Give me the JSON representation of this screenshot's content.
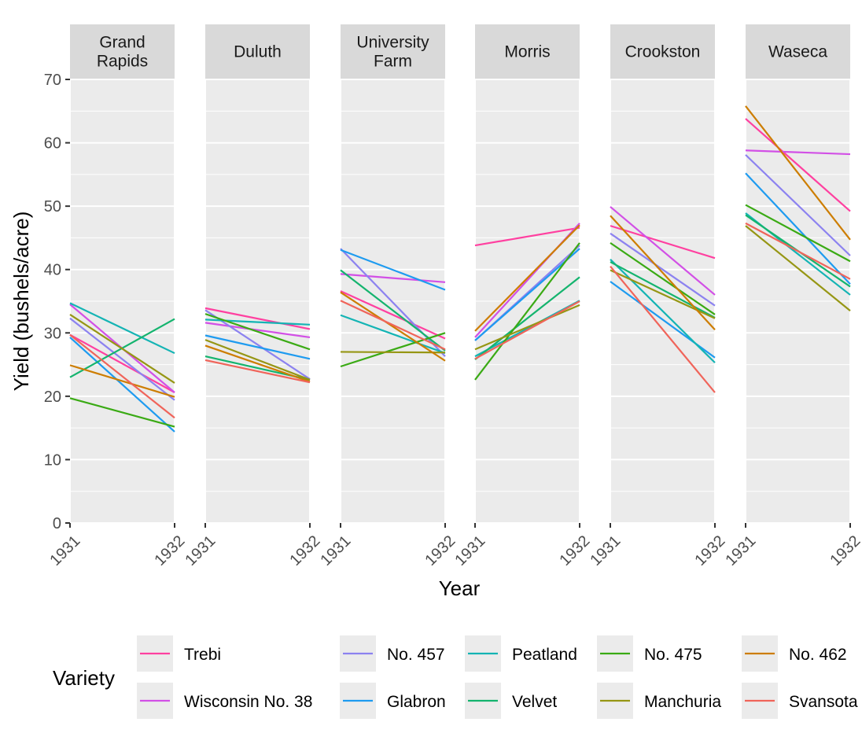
{
  "chart_data": {
    "type": "line",
    "xlabel": "Year",
    "ylabel": "Yield (bushels/acre)",
    "ylim": [
      0,
      70
    ],
    "yticks": [
      0,
      10,
      20,
      30,
      40,
      50,
      60,
      70
    ],
    "x": [
      "1931",
      "1932"
    ],
    "grid": true,
    "legend": {
      "title": "Variety",
      "position": "bottom"
    },
    "panels": [
      {
        "site": "Grand\nRapids",
        "lines": [
          {
            "variety": "Trebi",
            "values": [
              29.7,
              20.6
            ]
          },
          {
            "variety": "Wisconsin No. 38",
            "values": [
              34.5,
              20.6
            ]
          },
          {
            "variety": "No. 457",
            "values": [
              32.3,
              19.4
            ]
          },
          {
            "variety": "Glabron",
            "values": [
              29.3,
              14.4
            ]
          },
          {
            "variety": "Peatland",
            "values": [
              34.7,
              26.8
            ]
          },
          {
            "variety": "Velvet",
            "values": [
              23.0,
              32.2
            ]
          },
          {
            "variety": "No. 475",
            "values": [
              19.7,
              15.2
            ]
          },
          {
            "variety": "Manchuria",
            "values": [
              32.9,
              22.1
            ]
          },
          {
            "variety": "No. 462",
            "values": [
              24.9,
              19.9
            ]
          },
          {
            "variety": "Svansota",
            "values": [
              29.7,
              16.6
            ]
          }
        ]
      },
      {
        "site": "Duluth",
        "lines": [
          {
            "variety": "Trebi",
            "values": [
              33.9,
              30.6
            ]
          },
          {
            "variety": "Wisconsin No. 38",
            "values": [
              31.6,
              29.3
            ]
          },
          {
            "variety": "No. 457",
            "values": [
              33.6,
              22.7
            ]
          },
          {
            "variety": "Glabron",
            "values": [
              29.6,
              25.9
            ]
          },
          {
            "variety": "Peatland",
            "values": [
              32.1,
              31.3
            ]
          },
          {
            "variety": "Velvet",
            "values": [
              26.3,
              22.6
            ]
          },
          {
            "variety": "No. 475",
            "values": [
              33.0,
              27.4
            ]
          },
          {
            "variety": "Manchuria",
            "values": [
              28.9,
              22.6
            ]
          },
          {
            "variety": "No. 462",
            "values": [
              28.0,
              22.3
            ]
          },
          {
            "variety": "Svansota",
            "values": [
              25.7,
              22.2
            ]
          }
        ]
      },
      {
        "site": "University\nFarm",
        "lines": [
          {
            "variety": "Trebi",
            "values": [
              36.6,
              29.1
            ]
          },
          {
            "variety": "Wisconsin No. 38",
            "values": [
              39.3,
              38.0
            ]
          },
          {
            "variety": "No. 457",
            "values": [
              43.3,
              26.3
            ]
          },
          {
            "variety": "Glabron",
            "values": [
              43.1,
              36.8
            ]
          },
          {
            "variety": "Peatland",
            "values": [
              32.8,
              26.8
            ]
          },
          {
            "variety": "Velvet",
            "values": [
              39.9,
              27.2
            ]
          },
          {
            "variety": "No. 475",
            "values": [
              24.7,
              30.0
            ]
          },
          {
            "variety": "Manchuria",
            "values": [
              27.0,
              26.9
            ]
          },
          {
            "variety": "No. 462",
            "values": [
              36.4,
              25.6
            ]
          },
          {
            "variety": "Svansota",
            "values": [
              35.1,
              27.4
            ]
          }
        ]
      },
      {
        "site": "Morris",
        "lines": [
          {
            "variety": "Trebi",
            "values": [
              43.8,
              46.6
            ]
          },
          {
            "variety": "Wisconsin No. 38",
            "values": [
              29.3,
              47.3
            ]
          },
          {
            "variety": "No. 457",
            "values": [
              28.8,
              43.8
            ]
          },
          {
            "variety": "Glabron",
            "values": [
              28.8,
              43.3
            ]
          },
          {
            "variety": "Peatland",
            "values": [
              26.3,
              35.1
            ]
          },
          {
            "variety": "Velvet",
            "values": [
              25.8,
              38.8
            ]
          },
          {
            "variety": "No. 475",
            "values": [
              22.6,
              44.2
            ]
          },
          {
            "variety": "Manchuria",
            "values": [
              27.4,
              34.4
            ]
          },
          {
            "variety": "No. 462",
            "values": [
              30.3,
              47.0
            ]
          },
          {
            "variety": "Svansota",
            "values": [
              25.9,
              35.0
            ]
          }
        ]
      },
      {
        "site": "Crookston",
        "lines": [
          {
            "variety": "Trebi",
            "values": [
              46.9,
              41.8
            ]
          },
          {
            "variety": "Wisconsin No. 38",
            "values": [
              49.9,
              36.0
            ]
          },
          {
            "variety": "No. 457",
            "values": [
              45.7,
              34.3
            ]
          },
          {
            "variety": "Glabron",
            "values": [
              38.1,
              26.1
            ]
          },
          {
            "variety": "Peatland",
            "values": [
              41.6,
              25.3
            ]
          },
          {
            "variety": "Velvet",
            "values": [
              41.2,
              32.4
            ]
          },
          {
            "variety": "No. 475",
            "values": [
              44.2,
              32.9
            ]
          },
          {
            "variety": "Manchuria",
            "values": [
              39.9,
              32.3
            ]
          },
          {
            "variety": "No. 462",
            "values": [
              48.5,
              30.5
            ]
          },
          {
            "variety": "Svansota",
            "values": [
              40.5,
              20.6
            ]
          }
        ]
      },
      {
        "site": "Waseca",
        "lines": [
          {
            "variety": "Trebi",
            "values": [
              63.8,
              49.2
            ]
          },
          {
            "variety": "Wisconsin No. 38",
            "values": [
              58.8,
              58.2
            ]
          },
          {
            "variety": "No. 457",
            "values": [
              58.1,
              42.2
            ]
          },
          {
            "variety": "Glabron",
            "values": [
              55.2,
              37.7
            ]
          },
          {
            "variety": "Peatland",
            "values": [
              48.9,
              36.0
            ]
          },
          {
            "variety": "Velvet",
            "values": [
              48.6,
              37.3
            ]
          },
          {
            "variety": "No. 475",
            "values": [
              50.2,
              41.3
            ]
          },
          {
            "variety": "Manchuria",
            "values": [
              46.9,
              33.5
            ]
          },
          {
            "variety": "No. 462",
            "values": [
              65.8,
              44.7
            ]
          },
          {
            "variety": "Svansota",
            "values": [
              47.3,
              38.5
            ]
          }
        ]
      }
    ],
    "varieties": [
      {
        "name": "Trebi",
        "color": "#ff40a0"
      },
      {
        "name": "Wisconsin No. 38",
        "color": "#d250e6"
      },
      {
        "name": "No. 457",
        "color": "#8c82f0"
      },
      {
        "name": "Glabron",
        "color": "#1e9bf0"
      },
      {
        "name": "Peatland",
        "color": "#14b4b4"
      },
      {
        "name": "Velvet",
        "color": "#14b46e"
      },
      {
        "name": "No. 475",
        "color": "#3aaa14"
      },
      {
        "name": "Manchuria",
        "color": "#969614"
      },
      {
        "name": "No. 462",
        "color": "#cd7d00"
      },
      {
        "name": "Svansota",
        "color": "#f0645a"
      }
    ],
    "legend_layout": [
      [
        "Trebi",
        "Wisconsin No. 38"
      ],
      [
        "No. 457",
        "Glabron"
      ],
      [
        "Peatland",
        "Velvet"
      ],
      [
        "No. 475",
        "Manchuria"
      ],
      [
        "No. 462",
        "Svansota"
      ]
    ]
  }
}
